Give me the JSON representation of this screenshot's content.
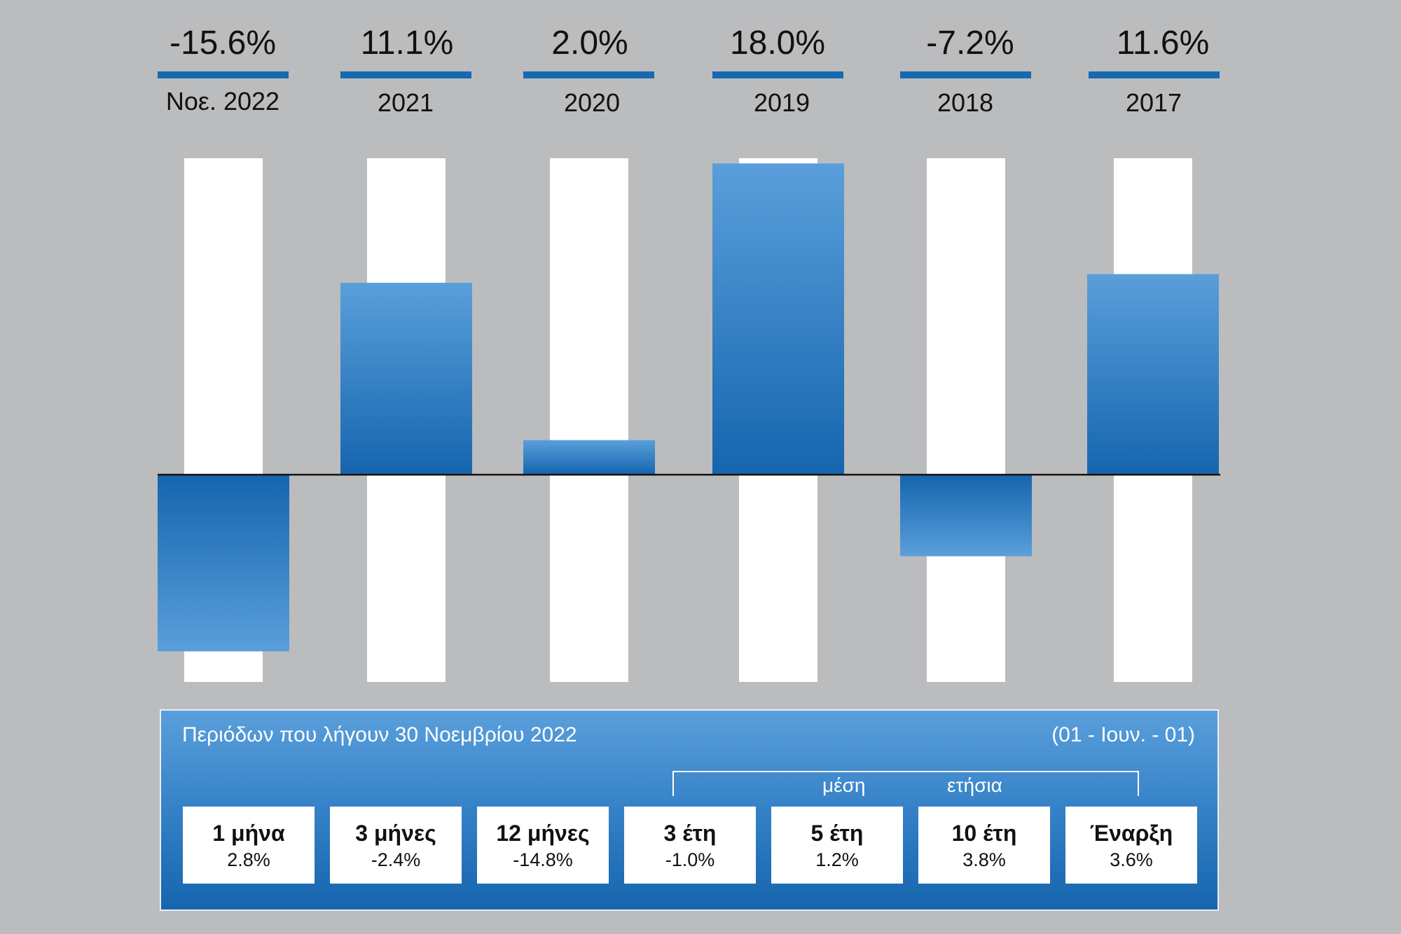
{
  "chart_data": {
    "type": "bar",
    "categories": [
      "Νοε. 2022",
      "2021",
      "2020",
      "2019",
      "2018",
      "2017"
    ],
    "values": [
      -15.6,
      11.1,
      2.0,
      18.0,
      -7.2,
      11.6
    ],
    "value_labels": [
      "-15.6%",
      "11.1%",
      "2.0%",
      "18.0%",
      "-7.2%",
      "11.6%"
    ],
    "ylim": [
      -18.3,
      18.3
    ],
    "grid": false,
    "colors": {
      "bar_top": "#5a9fdb",
      "bar_bottom": "#1565ae",
      "track": "#ffffff",
      "background": "#bbbcbe",
      "accent": "#1769b3"
    }
  },
  "panel": {
    "title": "Περιόδων που λήγουν 30 Νοεμβρίου 2022",
    "range": "(01 - Ιουν. - 01)",
    "bracket_left": "μέση",
    "bracket_right": "ετήσια",
    "cards": [
      {
        "label": "1 μήνα",
        "value": "2.8%"
      },
      {
        "label": "3 μήνες",
        "value": "-2.4%"
      },
      {
        "label": "12 μήνες",
        "value": "-14.8%"
      },
      {
        "label": "3 έτη",
        "value": "-1.0%"
      },
      {
        "label": "5 έτη",
        "value": "1.2%"
      },
      {
        "label": "10 έτη",
        "value": "3.8%"
      },
      {
        "label": "Έναρξη",
        "value": "3.6%"
      }
    ]
  }
}
